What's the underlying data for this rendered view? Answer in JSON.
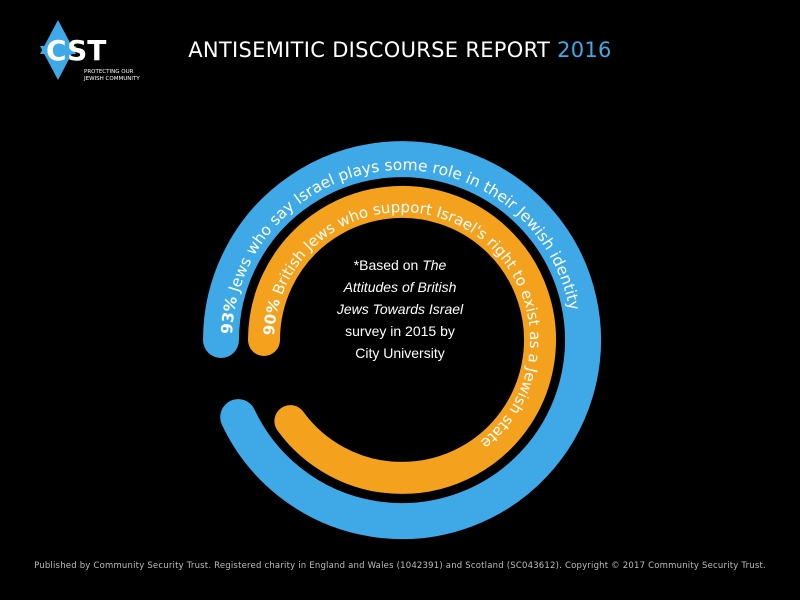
{
  "logo": {
    "text": "CST",
    "tagline_line1": "PROTECTING OUR",
    "tagline_line2": "JEWISH COMMUNITY"
  },
  "header": {
    "title": "ANTISEMITIC DISCOURSE REPORT",
    "year": "2016"
  },
  "chart_data": {
    "type": "radial-bar",
    "series": [
      {
        "pct_label": "93%",
        "value": 93,
        "text": " Jews who say Israel plays some role in their Jewish identity",
        "color": "#3ea9e6"
      },
      {
        "pct_label": "90%",
        "value": 90,
        "text": " British Jews who support Israel's right to exist as a Jewish state",
        "color": "#f4a21d"
      }
    ]
  },
  "note": {
    "line1": "*Based on ",
    "line1_italic": "The",
    "line2_italic": "Attitudes of British",
    "line3_italic": "Jews Towards Israel",
    "line4": "survey in 2015 by",
    "line5": "City University"
  },
  "footer": {
    "text": "Published by Community Security Trust. Registered charity in England and Wales (1042391) and Scotland (SC043612). Copyright © 2017 Community Security Trust."
  },
  "colors": {
    "background": "#000000",
    "blue": "#3ea9e6",
    "orange": "#f4a21d",
    "text": "#ffffff"
  }
}
